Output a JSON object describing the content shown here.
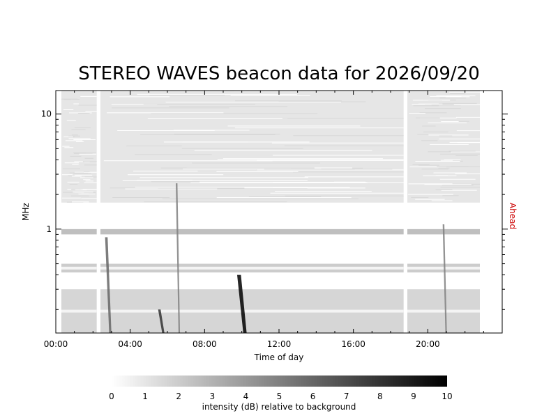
{
  "chart_data": {
    "type": "heatmap",
    "title": "STEREO WAVES beacon data for 2026/09/20",
    "xlabel": "Time of day",
    "ylabel": "MHz",
    "side_label": "Ahead",
    "side_label_color": "#cc0000",
    "x_range_hours": [
      0,
      24
    ],
    "x_ticks": [
      "00:00",
      "04:00",
      "08:00",
      "12:00",
      "16:00",
      "20:00"
    ],
    "x_tick_hours": [
      0,
      4,
      8,
      12,
      16,
      20
    ],
    "y_range_mhz": [
      0.125,
      16
    ],
    "y_scale": "log",
    "y_ticks": [
      "1",
      "10"
    ],
    "y_tick_values": [
      1,
      10
    ],
    "data_coverage_hours": [
      [
        0.3,
        2.2
      ],
      [
        2.4,
        18.7
      ],
      [
        18.9,
        22.8
      ]
    ],
    "bands": [
      {
        "f_low": 1.7,
        "f_high": 16,
        "intensity": 1.0,
        "texture": "noisy"
      },
      {
        "f_low": 0.9,
        "f_high": 1.0,
        "intensity": 2.5,
        "texture": "line"
      },
      {
        "f_low": 0.42,
        "f_high": 0.5,
        "intensity": 2.0,
        "texture": "soft"
      },
      {
        "f_low": 0.125,
        "f_high": 0.3,
        "intensity": 1.6,
        "texture": "soft"
      }
    ],
    "bursts": [
      {
        "t_start": 2.65,
        "t_end": 2.95,
        "f_top": 0.85,
        "peak_db": 6
      },
      {
        "t_start": 5.5,
        "t_end": 5.8,
        "f_top": 0.2,
        "peak_db": 8
      },
      {
        "t_start": 6.45,
        "t_end": 6.65,
        "f_top": 2.5,
        "peak_db": 5
      },
      {
        "t_start": 9.75,
        "t_end": 10.2,
        "f_top": 0.4,
        "peak_db": 10
      },
      {
        "t_start": 20.8,
        "t_end": 21.0,
        "f_top": 1.1,
        "peak_db": 5
      }
    ],
    "colorbar": {
      "label": "intensity (dB) relative to background",
      "ticks": [
        "0",
        "1",
        "2",
        "3",
        "4",
        "5",
        "6",
        "7",
        "8",
        "9",
        "10"
      ],
      "range_db": [
        0,
        10
      ]
    }
  }
}
